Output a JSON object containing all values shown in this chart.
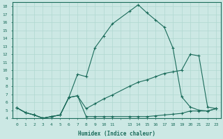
{
  "xlabel": "Humidex (Indice chaleur)",
  "bg_color": "#cce8e4",
  "grid_color": "#b0d8d0",
  "line_color": "#1a6b5a",
  "xlim": [
    -0.5,
    23.5
  ],
  "ylim": [
    4,
    18.5
  ],
  "yticks": [
    4,
    5,
    6,
    7,
    8,
    9,
    10,
    11,
    12,
    13,
    14,
    15,
    16,
    17,
    18
  ],
  "x_ticks": [
    0,
    1,
    2,
    3,
    4,
    5,
    6,
    7,
    8,
    9,
    10,
    11,
    13,
    14,
    15,
    16,
    17,
    18,
    19,
    20,
    21,
    22,
    23
  ],
  "x_labels": [
    "0",
    "1",
    "2",
    "3",
    "4",
    "5",
    "6",
    "7",
    "8",
    "9",
    "10",
    "11",
    "13",
    "14",
    "15",
    "16",
    "17",
    "18",
    "19",
    "20",
    "21",
    "22",
    "23"
  ],
  "curve1_x": [
    0,
    1,
    2,
    3,
    4,
    5,
    6,
    7,
    8,
    9,
    10,
    11,
    13,
    14,
    15,
    16,
    17,
    18,
    19,
    20,
    21,
    22,
    23
  ],
  "curve1_y": [
    5.3,
    4.7,
    4.4,
    4.0,
    4.2,
    4.4,
    6.6,
    9.5,
    9.2,
    12.8,
    14.3,
    15.8,
    17.4,
    18.2,
    17.2,
    16.3,
    15.4,
    12.8,
    6.7,
    5.4,
    5.0,
    4.9,
    5.2
  ],
  "curve2_x": [
    0,
    1,
    2,
    3,
    4,
    5,
    6,
    7,
    8,
    9,
    10,
    11,
    13,
    14,
    15,
    16,
    17,
    18,
    19,
    20,
    21,
    22,
    23
  ],
  "curve2_y": [
    5.3,
    4.7,
    4.4,
    4.0,
    4.2,
    4.4,
    6.6,
    6.8,
    4.2,
    4.2,
    4.2,
    4.2,
    4.2,
    4.2,
    4.2,
    4.3,
    4.4,
    4.5,
    4.6,
    4.9,
    4.9,
    4.9,
    5.2
  ],
  "curve3_x": [
    0,
    1,
    2,
    3,
    4,
    5,
    6,
    7,
    8,
    9,
    10,
    11,
    13,
    14,
    15,
    16,
    17,
    18,
    19,
    20,
    21,
    22,
    23
  ],
  "curve3_y": [
    5.3,
    4.7,
    4.4,
    4.0,
    4.2,
    4.4,
    6.6,
    6.8,
    5.2,
    5.8,
    6.4,
    6.9,
    8.0,
    8.5,
    8.8,
    9.2,
    9.6,
    9.8,
    10.0,
    12.0,
    11.8,
    5.4,
    5.2
  ]
}
